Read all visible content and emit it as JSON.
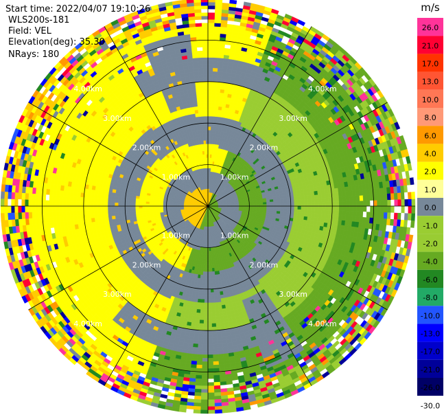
{
  "header": {
    "start_time": "Start time: 2022/04/07 19:10:26",
    "instrument": "WLS200s-181",
    "field": "Field: VEL",
    "elevation": "Elevation(deg): 35.30",
    "nrays": "NRays: 180"
  },
  "colorbar": {
    "unit": "m/s",
    "ticks": [
      "26.0",
      "21.0",
      "17.0",
      "13.0",
      "10.0",
      "8.0",
      "6.0",
      "4.0",
      "2.0",
      "1.0",
      "0.0",
      "-1.0",
      "-2.0",
      "-4.0",
      "-6.0",
      "-8.0",
      "-10.0",
      "-13.0",
      "-17.0",
      "-21.0",
      "-26.0",
      "-30.0"
    ],
    "colors": [
      "#ff3399",
      "#ff0033",
      "#ff3300",
      "#ff5533",
      "#ff7755",
      "#ff9977",
      "#ff9900",
      "#ffcc00",
      "#ffff00",
      "#ffff99",
      "#778899",
      "#9acd32",
      "#99cc33",
      "#66aa22",
      "#228822",
      "#22aa66",
      "#2255ff",
      "#0000ff",
      "#0000cc",
      "#000099",
      "#000066",
      "#ffffff"
    ]
  },
  "chart_data": {
    "type": "heatmap",
    "title": "",
    "unit": "m/s",
    "rings_km": [
      1.0,
      2.0,
      3.0,
      4.0
    ],
    "ring_labels": [
      "1.00km",
      "2.00km",
      "3.00km",
      "4.00km"
    ],
    "radial_lines_deg": [
      0,
      30,
      60,
      90,
      120,
      150,
      180,
      210,
      240,
      270,
      300,
      330
    ],
    "max_range_km": 5.0,
    "nrays": 180,
    "velocity_bands": [
      {
        "range_km": [
          0.0,
          0.5
        ],
        "value_east": -1.0,
        "value_west": 2.0
      },
      {
        "range_km": [
          0.5,
          1.0
        ],
        "value_east": 0.0,
        "value_west": 0.0
      },
      {
        "range_km": [
          1.0,
          1.6
        ],
        "value_east": -2.0,
        "value_west": 2.0
      },
      {
        "range_km": [
          1.6,
          2.3
        ],
        "value_east": 0.0,
        "value_west": 0.0
      },
      {
        "range_km": [
          2.3,
          3.3
        ],
        "value_east": -2.0,
        "value_west": 2.0
      },
      {
        "range_km": [
          3.3,
          4.2
        ],
        "value_east": -2.0,
        "value_west": 2.0
      },
      {
        "range_km": [
          4.2,
          5.0
        ],
        "value_east": "noisy",
        "value_west": "noisy"
      }
    ]
  }
}
